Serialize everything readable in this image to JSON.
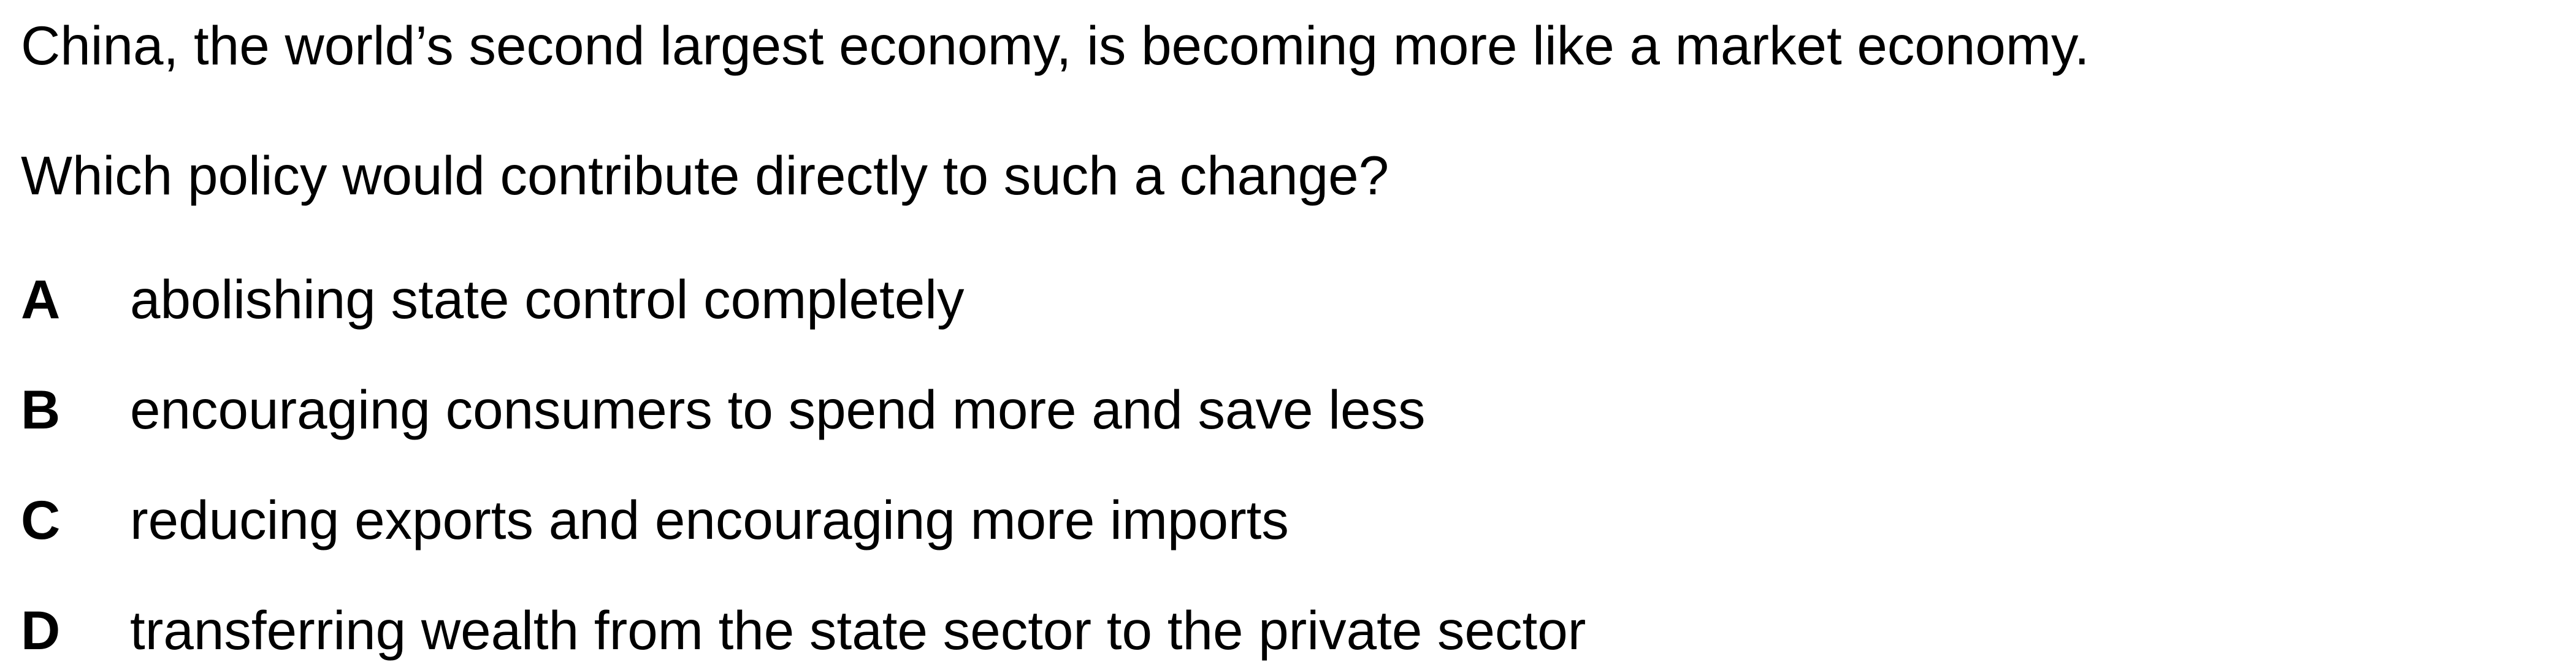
{
  "question": {
    "stem": "China, the world’s second largest economy, is becoming more like a market economy.",
    "prompt": "Which policy would contribute directly to such a change?",
    "options": [
      {
        "letter": "A",
        "text": "abolishing state control completely"
      },
      {
        "letter": "B",
        "text": "encouraging consumers to spend more and save less"
      },
      {
        "letter": "C",
        "text": "reducing exports and encouraging more imports"
      },
      {
        "letter": "D",
        "text": "transferring wealth from the state sector to the private sector"
      }
    ]
  }
}
